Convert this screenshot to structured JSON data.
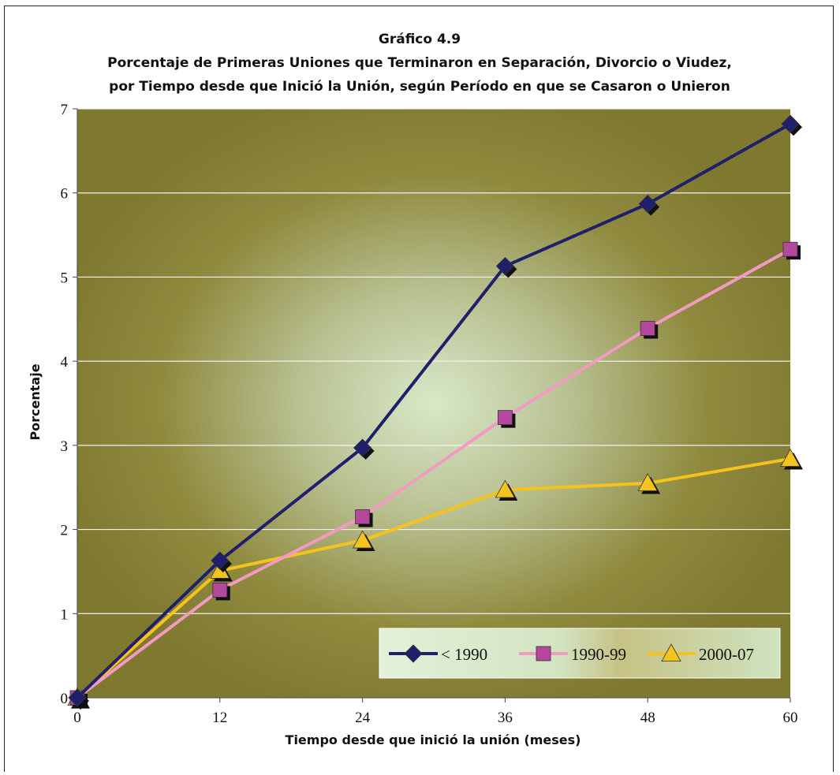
{
  "chart_data": {
    "type": "line",
    "title": "Gráfico 4.9",
    "subtitle_lines": [
      "Porcentaje de Primeras Uniones que Terminaron en Separación, Divorcio o Viudez,",
      "por Tiempo desde que Inició la Unión, según Período en que se Casaron o Unieron"
    ],
    "xlabel": "Tiempo desde que inició la unión (meses)",
    "ylabel": "Porcentaje",
    "x": [
      0,
      12,
      24,
      36,
      48,
      60
    ],
    "xlim": [
      0,
      60
    ],
    "ylim": [
      0,
      7
    ],
    "yticks": [
      0,
      1,
      2,
      3,
      4,
      5,
      6,
      7
    ],
    "grid": true,
    "legend_position": "bottom-right",
    "series": [
      {
        "name": "< 1990",
        "values": [
          0,
          1.63,
          2.97,
          5.13,
          5.87,
          6.82
        ],
        "color": "#1f1f6b",
        "marker": "diamond"
      },
      {
        "name": "1990-99",
        "values": [
          0,
          1.28,
          2.15,
          3.33,
          4.39,
          5.33
        ],
        "color": "#f29ac4",
        "marker": "square",
        "marker_color": "#b5479c"
      },
      {
        "name": "2000-07",
        "values": [
          0,
          1.51,
          1.87,
          2.47,
          2.55,
          2.84
        ],
        "color": "#f5c31d",
        "marker": "triangle"
      }
    ]
  }
}
